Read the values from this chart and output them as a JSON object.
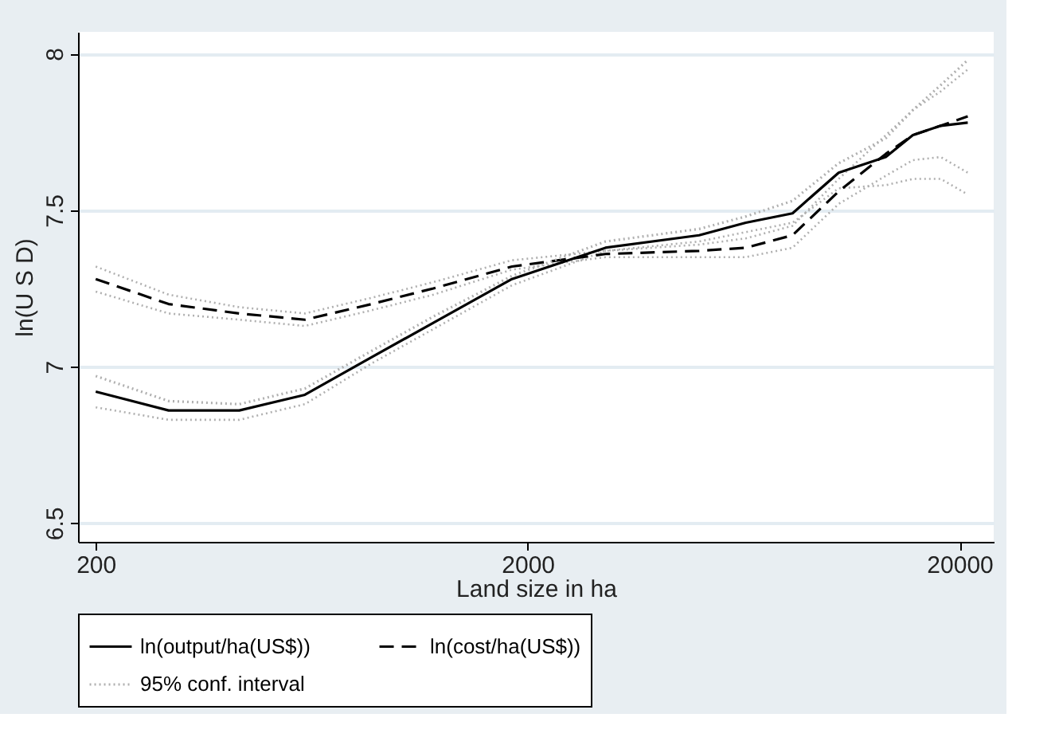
{
  "chart_data": {
    "type": "line",
    "xlabel": "Land size in ha",
    "ylabel": "ln(U S D)",
    "log": "x",
    "xlim": [
      182,
      24000
    ],
    "ylim": [
      6.44,
      8.07
    ],
    "xticks": [
      200,
      2000,
      20000
    ],
    "yticks": [
      6.5,
      7,
      7.5,
      8
    ],
    "grid": "y",
    "legend": "bottom",
    "x": [
      200,
      295,
      430,
      610,
      870,
      1210,
      1840,
      3030,
      4990,
      6400,
      8210,
      10500,
      13500,
      15600,
      18100,
      20900
    ],
    "series": [
      {
        "name": "ln(output/ha(US$))",
        "color": "#000000",
        "line_style": "solid",
        "values": [
          6.92,
          6.86,
          6.86,
          6.91,
          7.03,
          7.14,
          7.28,
          7.38,
          7.42,
          7.46,
          7.49,
          7.62,
          7.67,
          7.74,
          7.77,
          7.78
        ]
      },
      {
        "name": "ln(cost/ha(US$))",
        "color": "#000000",
        "line_style": "dashed",
        "values": [
          7.28,
          7.2,
          7.17,
          7.15,
          7.2,
          7.25,
          7.32,
          7.36,
          7.37,
          7.38,
          7.42,
          7.56,
          7.68,
          7.74,
          7.77,
          7.8
        ]
      },
      {
        "name": "95% conf. interval",
        "color": "#b0b0b0",
        "line_style": "dotted",
        "values": [
          6.97,
          6.89,
          6.88,
          6.93,
          7.05,
          7.16,
          7.29,
          7.4,
          7.44,
          7.48,
          7.53,
          7.65,
          7.73,
          7.82,
          7.9,
          7.98
        ]
      },
      {
        "color": "#b0b0b0",
        "line_style": "dotted",
        "values": [
          6.87,
          6.83,
          6.83,
          6.88,
          7.01,
          7.12,
          7.26,
          7.37,
          7.4,
          7.43,
          7.46,
          7.57,
          7.58,
          7.6,
          7.6,
          7.55
        ]
      },
      {
        "color": "#b0b0b0",
        "line_style": "dotted",
        "values": [
          7.32,
          7.23,
          7.19,
          7.17,
          7.22,
          7.27,
          7.34,
          7.37,
          7.39,
          7.41,
          7.45,
          7.6,
          7.74,
          7.82,
          7.88,
          7.95
        ]
      },
      {
        "color": "#b0b0b0",
        "line_style": "dotted",
        "values": [
          7.24,
          7.17,
          7.15,
          7.13,
          7.18,
          7.23,
          7.31,
          7.35,
          7.35,
          7.35,
          7.38,
          7.52,
          7.61,
          7.66,
          7.67,
          7.62
        ]
      }
    ]
  }
}
